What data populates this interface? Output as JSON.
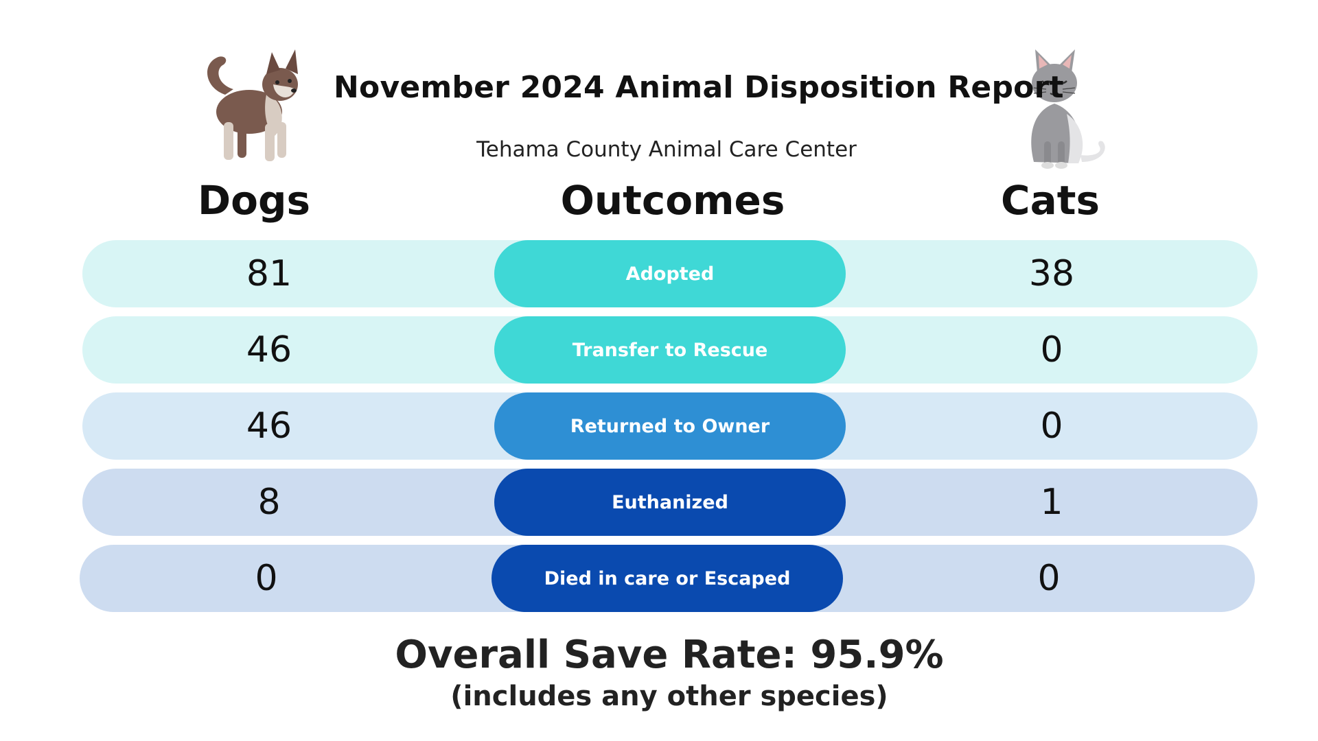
{
  "header": {
    "title": "November 2024 Animal Disposition Report",
    "subtitle": "Tehama County Animal Care Center"
  },
  "columns": {
    "dogs": "Dogs",
    "outcomes": "Outcomes",
    "cats": "Cats"
  },
  "rows": [
    {
      "outcome": "Adopted",
      "dogs": "81",
      "cats": "38",
      "pill_color": "#3fd8d6"
    },
    {
      "outcome": "Transfer to Rescue",
      "dogs": "46",
      "cats": "0",
      "pill_color": "#3fd8d6"
    },
    {
      "outcome": "Returned to Owner",
      "dogs": "46",
      "cats": "0",
      "pill_color": "#2e8fd4"
    },
    {
      "outcome": "Euthanized",
      "dogs": "8",
      "cats": "1",
      "pill_color": "#0a4aaf"
    },
    {
      "outcome": "Died in care or Escaped",
      "dogs": "0",
      "cats": "0",
      "pill_color": "#0a4aaf"
    }
  ],
  "summary": {
    "save_rate": "Overall Save Rate: 95.9%",
    "note": "(includes any other species)"
  },
  "illustrations": {
    "left": "dog-icon",
    "right": "cat-icon"
  }
}
